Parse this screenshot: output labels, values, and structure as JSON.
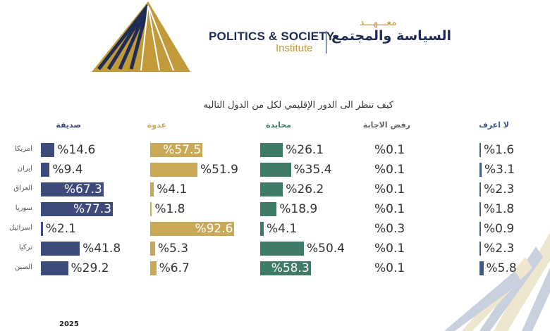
{
  "brand": {
    "name_en_line1": "POLITICS & SOCIETY",
    "name_en_line2": "Institute",
    "name_ar_top": "معـــهـــد",
    "name_ar": "السياسة والمجتمع"
  },
  "year": "2025",
  "chart_data": {
    "type": "bar",
    "title": "كيف تنظر الى الدور الإقليمي لكل من الدول التاليه",
    "categories": [
      "امريكا",
      "ايران",
      "العراق",
      "سوريا",
      "اسرائيل",
      "تركيا",
      "الصين"
    ],
    "series": [
      {
        "name": "صديقة",
        "color": "#3d4a7a",
        "values": [
          14.6,
          9.4,
          67.3,
          77.3,
          2.1,
          41.8,
          29.2
        ]
      },
      {
        "name": "عدوة",
        "color": "#c9a858",
        "values": [
          57.5,
          51.9,
          4.1,
          1.8,
          92.6,
          5.3,
          6.7
        ]
      },
      {
        "name": "محايدة",
        "color": "#3e7a66",
        "values": [
          26.1,
          35.4,
          26.2,
          18.9,
          4.1,
          50.4,
          58.3
        ]
      },
      {
        "name": "رفض الاجابة",
        "color": "#666666",
        "values": [
          0.1,
          0.1,
          0.1,
          0.1,
          0.3,
          0.1,
          0.1
        ]
      },
      {
        "name": "لا اعرف",
        "color": "#3d5a8a",
        "values": [
          1.6,
          3.1,
          2.3,
          1.8,
          0.9,
          2.3,
          5.8
        ]
      }
    ],
    "value_prefix": "%",
    "legend": "column headers above each column"
  }
}
